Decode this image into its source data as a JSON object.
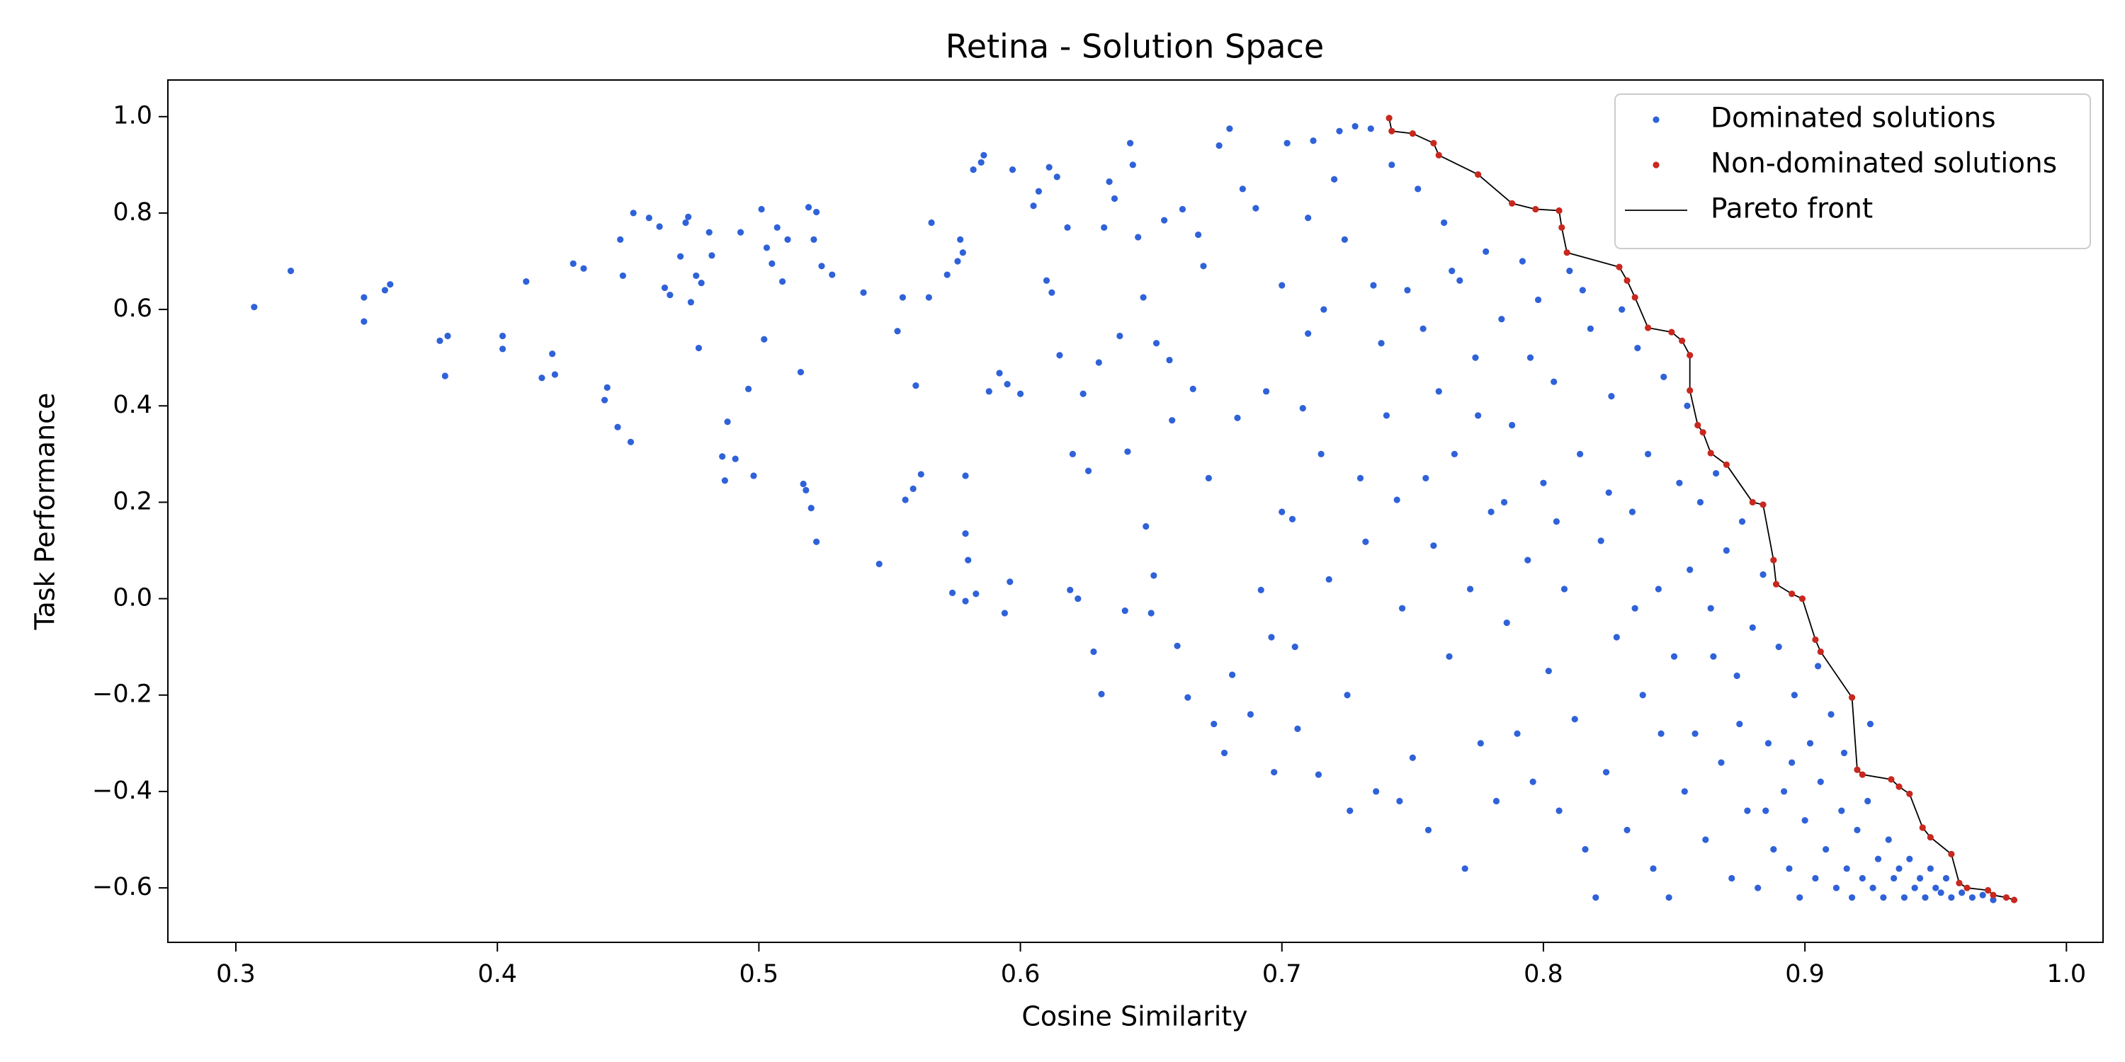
{
  "chart_data": {
    "type": "scatter",
    "title": "Retina - Solution Space",
    "x_label": "Cosine Similarity",
    "y_label": "Task Performance",
    "xlim": [
      0.274,
      1.014
    ],
    "ylim": [
      -0.713,
      1.076
    ],
    "xticks": [
      0.3,
      0.4,
      0.5,
      0.6,
      0.7,
      0.8,
      0.9,
      {
        "value": 1.0,
        "label": "1.0"
      }
    ],
    "yticks": [
      {
        "value": -0.6,
        "label": "−0.6"
      },
      {
        "value": -0.4,
        "label": "−0.4"
      },
      {
        "value": -0.2,
        "label": "−0.2"
      },
      {
        "value": 0.0,
        "label": "0.0"
      },
      0.2,
      0.4,
      0.6,
      0.8,
      {
        "value": 1.0,
        "label": "1.0"
      }
    ],
    "grid": false,
    "legend": "upper right",
    "series": [
      {
        "name": "Dominated solutions",
        "color": "#2f62d8",
        "type": "scatter",
        "x": [
          0.307,
          0.321,
          0.349,
          0.349,
          0.357,
          0.359,
          0.378,
          0.381,
          0.38,
          0.402,
          0.402,
          0.411,
          0.417,
          0.421,
          0.422,
          0.429,
          0.433,
          0.441,
          0.442,
          0.446,
          0.447,
          0.448,
          0.451,
          0.452,
          0.458,
          0.462,
          0.464,
          0.466,
          0.47,
          0.472,
          0.473,
          0.474,
          0.476,
          0.477,
          0.478,
          0.481,
          0.482,
          0.486,
          0.487,
          0.488,
          0.491,
          0.493,
          0.496,
          0.498,
          0.501,
          0.502,
          0.503,
          0.505,
          0.507,
          0.509,
          0.511,
          0.516,
          0.517,
          0.518,
          0.519,
          0.52,
          0.522,
          0.521,
          0.522,
          0.524,
          0.528,
          0.54,
          0.546,
          0.553,
          0.555,
          0.556,
          0.559,
          0.56,
          0.562,
          0.565,
          0.566,
          0.572,
          0.574,
          0.576,
          0.577,
          0.578,
          0.579,
          0.579,
          0.579,
          0.58,
          0.582,
          0.583,
          0.585,
          0.586,
          0.588,
          0.592,
          0.594,
          0.595,
          0.596,
          0.597,
          0.6,
          0.605,
          0.607,
          0.61,
          0.611,
          0.612,
          0.614,
          0.615,
          0.618,
          0.619,
          0.62,
          0.622,
          0.624,
          0.626,
          0.628,
          0.63,
          0.631,
          0.632,
          0.634,
          0.636,
          0.638,
          0.64,
          0.641,
          0.642,
          0.643,
          0.645,
          0.647,
          0.648,
          0.65,
          0.651,
          0.652,
          0.655,
          0.657,
          0.658,
          0.66,
          0.662,
          0.664,
          0.666,
          0.668,
          0.67,
          0.672,
          0.674,
          0.676,
          0.678,
          0.68,
          0.681,
          0.683,
          0.685,
          0.688,
          0.69,
          0.692,
          0.694,
          0.696,
          0.697,
          0.7,
          0.702,
          0.704,
          0.706,
          0.708,
          0.71,
          0.712,
          0.714,
          0.716,
          0.718,
          0.72,
          0.722,
          0.724,
          0.726,
          0.728,
          0.73,
          0.732,
          0.734,
          0.736,
          0.738,
          0.74,
          0.742,
          0.744,
          0.746,
          0.748,
          0.75,
          0.752,
          0.754,
          0.756,
          0.758,
          0.76,
          0.762,
          0.764,
          0.766,
          0.768,
          0.77,
          0.772,
          0.774,
          0.776,
          0.778,
          0.78,
          0.782,
          0.784,
          0.786,
          0.788,
          0.79,
          0.792,
          0.794,
          0.796,
          0.798,
          0.8,
          0.802,
          0.804,
          0.806,
          0.808,
          0.81,
          0.812,
          0.814,
          0.816,
          0.818,
          0.82,
          0.822,
          0.824,
          0.826,
          0.828,
          0.83,
          0.832,
          0.834,
          0.836,
          0.838,
          0.84,
          0.842,
          0.844,
          0.846,
          0.848,
          0.85,
          0.852,
          0.854,
          0.856,
          0.858,
          0.86,
          0.862,
          0.864,
          0.866,
          0.868,
          0.87,
          0.872,
          0.874,
          0.876,
          0.878,
          0.88,
          0.882,
          0.884,
          0.886,
          0.888,
          0.89,
          0.892,
          0.894,
          0.896,
          0.898,
          0.9,
          0.902,
          0.904,
          0.906,
          0.908,
          0.91,
          0.912,
          0.914,
          0.916,
          0.918,
          0.92,
          0.922,
          0.924,
          0.926,
          0.928,
          0.93,
          0.932,
          0.934,
          0.936,
          0.938,
          0.94,
          0.942,
          0.944,
          0.946,
          0.948,
          0.95,
          0.952,
          0.954,
          0.956,
          0.96,
          0.964,
          0.968,
          0.972,
          0.7,
          0.705,
          0.71,
          0.715,
          0.725,
          0.735,
          0.745,
          0.755,
          0.765,
          0.775,
          0.785,
          0.795,
          0.805,
          0.815,
          0.825,
          0.835,
          0.845,
          0.855,
          0.865,
          0.875,
          0.885,
          0.895,
          0.905,
          0.915,
          0.925
        ],
        "values": [
          0.605,
          0.68,
          0.625,
          0.575,
          0.64,
          0.652,
          0.535,
          0.545,
          0.462,
          0.545,
          0.518,
          0.658,
          0.458,
          0.508,
          0.465,
          0.695,
          0.685,
          0.412,
          0.438,
          0.356,
          0.745,
          0.67,
          0.325,
          0.8,
          0.79,
          0.772,
          0.645,
          0.63,
          0.71,
          0.78,
          0.792,
          0.615,
          0.67,
          0.52,
          0.655,
          0.76,
          0.712,
          0.295,
          0.245,
          0.367,
          0.29,
          0.76,
          0.435,
          0.255,
          0.808,
          0.538,
          0.728,
          0.695,
          0.77,
          0.658,
          0.745,
          0.47,
          0.238,
          0.225,
          0.812,
          0.188,
          0.802,
          0.745,
          0.118,
          0.69,
          0.672,
          0.635,
          0.072,
          0.555,
          0.625,
          0.205,
          0.228,
          0.442,
          0.258,
          0.625,
          0.78,
          0.672,
          0.012,
          0.7,
          0.745,
          0.718,
          0.255,
          0.135,
          -0.005,
          0.08,
          0.89,
          0.01,
          0.905,
          0.92,
          0.43,
          0.468,
          -0.03,
          0.445,
          0.035,
          0.89,
          0.425,
          0.815,
          0.845,
          0.66,
          0.895,
          0.635,
          0.875,
          0.505,
          0.77,
          0.018,
          0.3,
          0.0,
          0.425,
          0.265,
          -0.11,
          0.49,
          -0.198,
          0.77,
          0.865,
          0.83,
          0.545,
          -0.025,
          0.305,
          0.945,
          0.9,
          0.75,
          0.625,
          0.15,
          -0.03,
          0.048,
          0.53,
          0.785,
          0.495,
          0.37,
          -0.098,
          0.808,
          -0.205,
          0.435,
          0.755,
          0.69,
          0.25,
          -0.26,
          0.94,
          -0.32,
          0.975,
          -0.158,
          0.375,
          0.85,
          -0.24,
          0.81,
          0.018,
          0.43,
          -0.08,
          -0.36,
          0.65,
          0.945,
          0.165,
          -0.27,
          0.395,
          0.79,
          0.95,
          -0.365,
          0.6,
          0.04,
          0.87,
          0.97,
          0.745,
          -0.44,
          0.98,
          0.25,
          0.118,
          0.975,
          -0.4,
          0.53,
          0.38,
          0.9,
          0.205,
          -0.02,
          0.64,
          -0.33,
          0.85,
          0.56,
          -0.48,
          0.11,
          0.43,
          0.78,
          -0.12,
          0.3,
          0.66,
          -0.56,
          0.02,
          0.5,
          -0.3,
          0.72,
          0.18,
          -0.42,
          0.58,
          -0.05,
          0.36,
          -0.28,
          0.7,
          0.08,
          -0.38,
          0.62,
          0.24,
          -0.15,
          0.45,
          -0.44,
          0.02,
          0.68,
          -0.25,
          0.3,
          -0.52,
          0.56,
          -0.62,
          0.12,
          -0.36,
          0.42,
          -0.08,
          0.6,
          -0.48,
          0.18,
          0.52,
          -0.2,
          0.3,
          -0.56,
          0.02,
          0.46,
          -0.62,
          -0.12,
          0.24,
          -0.4,
          0.06,
          -0.28,
          0.2,
          -0.5,
          -0.02,
          0.26,
          -0.34,
          0.1,
          -0.58,
          -0.16,
          0.16,
          -0.44,
          -0.06,
          -0.6,
          0.05,
          -0.3,
          -0.52,
          -0.1,
          -0.4,
          -0.56,
          -0.2,
          -0.62,
          -0.46,
          -0.3,
          -0.58,
          -0.38,
          -0.52,
          -0.24,
          -0.6,
          -0.44,
          -0.56,
          -0.62,
          -0.48,
          -0.58,
          -0.42,
          -0.6,
          -0.54,
          -0.62,
          -0.5,
          -0.58,
          -0.56,
          -0.62,
          -0.54,
          -0.6,
          -0.58,
          -0.62,
          -0.56,
          -0.6,
          -0.61,
          -0.58,
          -0.62,
          -0.61,
          -0.62,
          -0.615,
          -0.625,
          0.18,
          -0.1,
          0.55,
          0.3,
          -0.2,
          0.65,
          -0.42,
          0.25,
          0.68,
          0.38,
          0.2,
          0.5,
          0.16,
          0.64,
          0.22,
          -0.02,
          -0.28,
          0.4,
          -0.12,
          -0.26,
          -0.44,
          -0.34,
          -0.14,
          -0.32,
          -0.26
        ]
      },
      {
        "name": "Non-dominated solutions",
        "color": "#c8281e",
        "type": "scatter",
        "x": [
          0.741,
          0.742,
          0.75,
          0.758,
          0.76,
          0.775,
          0.788,
          0.797,
          0.806,
          0.807,
          0.809,
          0.829,
          0.832,
          0.835,
          0.84,
          0.849,
          0.853,
          0.856,
          0.856,
          0.859,
          0.861,
          0.864,
          0.87,
          0.88,
          0.884,
          0.888,
          0.889,
          0.895,
          0.899,
          0.904,
          0.906,
          0.918,
          0.92,
          0.922,
          0.933,
          0.936,
          0.94,
          0.945,
          0.948,
          0.956,
          0.959,
          0.962,
          0.97,
          0.972,
          0.977,
          0.98
        ],
        "values": [
          0.997,
          0.97,
          0.965,
          0.945,
          0.92,
          0.88,
          0.82,
          0.808,
          0.805,
          0.77,
          0.718,
          0.688,
          0.66,
          0.625,
          0.562,
          0.553,
          0.535,
          0.505,
          0.432,
          0.36,
          0.345,
          0.302,
          0.278,
          0.2,
          0.195,
          0.08,
          0.03,
          0.01,
          0.0,
          -0.085,
          -0.11,
          -0.205,
          -0.355,
          -0.365,
          -0.375,
          -0.39,
          -0.405,
          -0.475,
          -0.495,
          -0.53,
          -0.59,
          -0.6,
          -0.605,
          -0.615,
          -0.62,
          -0.625
        ]
      },
      {
        "name": "Pareto front",
        "color": "#000000",
        "type": "line",
        "x": [
          0.741,
          0.742,
          0.75,
          0.758,
          0.76,
          0.775,
          0.788,
          0.797,
          0.806,
          0.807,
          0.809,
          0.829,
          0.832,
          0.835,
          0.84,
          0.849,
          0.853,
          0.856,
          0.856,
          0.859,
          0.861,
          0.864,
          0.87,
          0.88,
          0.884,
          0.888,
          0.889,
          0.895,
          0.899,
          0.904,
          0.906,
          0.918,
          0.92,
          0.922,
          0.933,
          0.936,
          0.94,
          0.945,
          0.948,
          0.956,
          0.959,
          0.962,
          0.97,
          0.972,
          0.977,
          0.98
        ],
        "values": [
          0.997,
          0.97,
          0.965,
          0.945,
          0.92,
          0.88,
          0.82,
          0.808,
          0.805,
          0.77,
          0.718,
          0.688,
          0.66,
          0.625,
          0.562,
          0.553,
          0.535,
          0.505,
          0.432,
          0.36,
          0.345,
          0.302,
          0.278,
          0.2,
          0.195,
          0.08,
          0.03,
          0.01,
          0.0,
          -0.085,
          -0.11,
          -0.205,
          -0.355,
          -0.365,
          -0.375,
          -0.39,
          -0.405,
          -0.475,
          -0.495,
          -0.53,
          -0.59,
          -0.6,
          -0.605,
          -0.615,
          -0.62,
          -0.625
        ]
      }
    ]
  }
}
